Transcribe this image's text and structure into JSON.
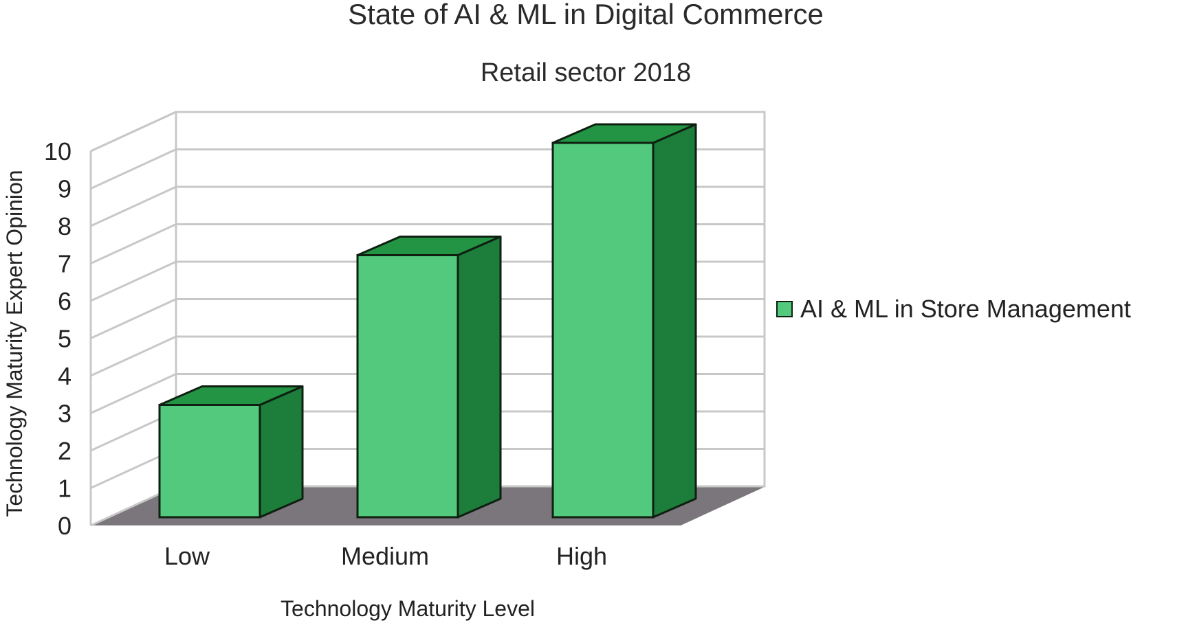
{
  "chart_data": {
    "type": "bar",
    "title": "State of AI & ML in Digital Commerce",
    "subtitle": "Retail sector 2018",
    "xlabel": "Technology Maturity Level",
    "ylabel": "Technology Maturity Expert Opinion",
    "categories": [
      "Low",
      "Medium",
      "High"
    ],
    "series": [
      {
        "name": "AI & ML in Store Management",
        "values": [
          3,
          7,
          10
        ]
      }
    ],
    "ylim": [
      0,
      10
    ],
    "yticks": [
      "0",
      "1",
      "2",
      "3",
      "4",
      "5",
      "6",
      "7",
      "8",
      "9",
      "10"
    ],
    "grid": true,
    "style": "3d",
    "legend_position": "right",
    "colors": {
      "bar_front": "#52c97c",
      "bar_top": "#229443",
      "bar_side": "#1c7e3a",
      "bar_edge": "#0f1f12",
      "floor": "#7a767b",
      "grid": "#c8c8c8"
    }
  }
}
